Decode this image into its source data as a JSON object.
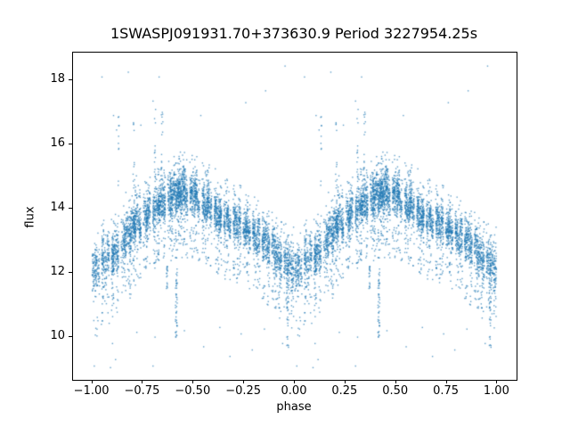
{
  "figure": {
    "background": "#ffffff",
    "text_color": "#000000",
    "spine_color": "#000000"
  },
  "chart_data": {
    "type": "scatter",
    "title": "1SWASPJ091931.70+373630.9 Period 3227954.25s",
    "xlabel": "phase",
    "ylabel": "flux",
    "xlim": [
      -1.095,
      1.095
    ],
    "ylim": [
      8.67,
      18.86
    ],
    "xticks": [
      -1.0,
      -0.75,
      -0.5,
      -0.25,
      0.0,
      0.25,
      0.5,
      0.75,
      1.0
    ],
    "xtick_labels": [
      "−1.00",
      "−0.75",
      "−0.50",
      "−0.25",
      "0.00",
      "0.25",
      "0.50",
      "0.75",
      "1.00"
    ],
    "yticks": [
      10,
      12,
      14,
      16,
      18
    ],
    "ytick_labels": [
      "10",
      "12",
      "14",
      "16",
      "18"
    ],
    "marker_color": "#1f77b4",
    "grid": false,
    "legend": null,
    "fold_note": "each point drawn at phase and phase-1 (two cycles, x from -1 to 1)",
    "mean_curve": {
      "phase": [
        0.0,
        0.04,
        0.08,
        0.12,
        0.16,
        0.2,
        0.25,
        0.3,
        0.35,
        0.4,
        0.46,
        0.52,
        0.58,
        0.64,
        0.7,
        0.76,
        0.82,
        0.86,
        0.9,
        0.95,
        1.0
      ],
      "flux": [
        12.15,
        12.25,
        12.4,
        12.7,
        13.05,
        13.4,
        13.7,
        13.95,
        14.2,
        14.4,
        14.55,
        14.3,
        14.0,
        13.75,
        13.55,
        13.35,
        13.1,
        12.9,
        12.65,
        12.3,
        12.15
      ]
    },
    "stripes": [
      [
        0.005,
        45,
        0.75,
        -0.1
      ],
      [
        0.018,
        70,
        0.8,
        0.05
      ],
      [
        0.03,
        35,
        0.7,
        -0.2
      ],
      [
        0.052,
        90,
        0.75,
        0.1
      ],
      [
        0.065,
        40,
        0.65,
        -0.05
      ],
      [
        0.078,
        60,
        0.8,
        0.15
      ],
      [
        0.1,
        110,
        0.7,
        -0.1
      ],
      [
        0.112,
        50,
        0.6,
        0.2
      ],
      [
        0.125,
        75,
        0.65,
        -0.15
      ],
      [
        0.148,
        40,
        0.7,
        0.05
      ],
      [
        0.16,
        85,
        0.6,
        -0.05
      ],
      [
        0.172,
        55,
        0.65,
        0.18
      ],
      [
        0.185,
        95,
        0.7,
        -0.12
      ],
      [
        0.198,
        65,
        0.6,
        0.08
      ],
      [
        0.21,
        120,
        0.65,
        -0.05
      ],
      [
        0.222,
        45,
        0.7,
        0.22
      ],
      [
        0.235,
        80,
        0.6,
        -0.18
      ],
      [
        0.258,
        55,
        0.65,
        0.1
      ],
      [
        0.27,
        100,
        0.6,
        -0.08
      ],
      [
        0.282,
        60,
        0.65,
        0.15
      ],
      [
        0.305,
        85,
        0.6,
        -0.15
      ],
      [
        0.318,
        50,
        0.65,
        0.05
      ],
      [
        0.33,
        110,
        0.6,
        -0.05
      ],
      [
        0.342,
        70,
        0.65,
        0.12
      ],
      [
        0.355,
        90,
        0.6,
        -0.1
      ],
      [
        0.378,
        55,
        0.65,
        0.08
      ],
      [
        0.39,
        120,
        0.7,
        -0.05
      ],
      [
        0.402,
        75,
        0.65,
        0.15
      ],
      [
        0.415,
        95,
        0.7,
        -0.1
      ],
      [
        0.428,
        130,
        0.65,
        0.05
      ],
      [
        0.44,
        85,
        0.7,
        -0.08
      ],
      [
        0.452,
        110,
        0.65,
        0.1
      ],
      [
        0.465,
        70,
        0.7,
        -0.15
      ],
      [
        0.488,
        95,
        0.65,
        0.05
      ],
      [
        0.5,
        60,
        0.7,
        -0.05
      ],
      [
        0.512,
        105,
        0.65,
        0.12
      ],
      [
        0.525,
        50,
        0.6,
        -0.18
      ],
      [
        0.548,
        85,
        0.65,
        0.08
      ],
      [
        0.56,
        65,
        0.6,
        -0.1
      ],
      [
        0.572,
        100,
        0.65,
        0.15
      ],
      [
        0.585,
        55,
        0.6,
        -0.05
      ],
      [
        0.608,
        90,
        0.65,
        0.1
      ],
      [
        0.62,
        70,
        0.6,
        -0.15
      ],
      [
        0.632,
        105,
        0.6,
        0.05
      ],
      [
        0.655,
        60,
        0.65,
        -0.08
      ],
      [
        0.668,
        85,
        0.6,
        0.12
      ],
      [
        0.68,
        45,
        0.65,
        -0.2
      ],
      [
        0.702,
        95,
        0.6,
        0.08
      ],
      [
        0.715,
        65,
        0.6,
        -0.1
      ],
      [
        0.728,
        80,
        0.65,
        0.15
      ],
      [
        0.75,
        55,
        0.6,
        -0.05
      ],
      [
        0.762,
        100,
        0.6,
        0.1
      ],
      [
        0.775,
        70,
        0.65,
        -0.12
      ],
      [
        0.798,
        85,
        0.6,
        0.05
      ],
      [
        0.81,
        50,
        0.6,
        -0.15
      ],
      [
        0.822,
        75,
        0.65,
        0.1
      ],
      [
        0.845,
        90,
        0.6,
        -0.08
      ],
      [
        0.858,
        60,
        0.6,
        0.12
      ],
      [
        0.87,
        80,
        0.65,
        -0.05
      ],
      [
        0.892,
        65,
        0.6,
        0.1
      ],
      [
        0.905,
        85,
        0.65,
        -0.12
      ],
      [
        0.918,
        55,
        0.6,
        0.05
      ],
      [
        0.93,
        75,
        0.65,
        -0.08
      ],
      [
        0.952,
        60,
        0.6,
        0.1
      ],
      [
        0.965,
        80,
        0.65,
        -0.05
      ],
      [
        0.978,
        45,
        0.6,
        0.08
      ],
      [
        0.99,
        65,
        0.7,
        -0.1
      ]
    ],
    "tall_streaks": [
      [
        0.13,
        10,
        14.5,
        16.9
      ],
      [
        0.205,
        12,
        14.6,
        16.8
      ],
      [
        0.31,
        15,
        14.8,
        17.35
      ],
      [
        0.345,
        14,
        14.7,
        17.2
      ]
    ],
    "deep_dips": [
      [
        0.415,
        45,
        9.95,
        12.15
      ],
      [
        0.37,
        18,
        11.5,
        12.2
      ],
      [
        0.965,
        25,
        9.65,
        11.6
      ]
    ],
    "outliers_high": [
      [
        0.048,
        18.1
      ],
      [
        0.178,
        18.25
      ],
      [
        0.33,
        18.1
      ],
      [
        0.952,
        18.44
      ],
      [
        0.856,
        17.67
      ],
      [
        0.758,
        17.3
      ],
      [
        0.536,
        16.9
      ],
      [
        0.105,
        16.9
      ],
      [
        0.3,
        17.35
      ],
      [
        0.24,
        16.6
      ],
      [
        0.12,
        16.45
      ]
    ],
    "outliers_low": [
      [
        0.01,
        9.1
      ],
      [
        0.09,
        9.05
      ],
      [
        0.1,
        9.8
      ],
      [
        0.115,
        9.3
      ],
      [
        0.3,
        9.1
      ],
      [
        0.55,
        9.7
      ],
      [
        0.68,
        9.4
      ],
      [
        0.79,
        9.6
      ],
      [
        0.94,
        9.8
      ],
      [
        0.455,
        10.2
      ],
      [
        0.31,
        10.0
      ],
      [
        0.22,
        10.15
      ],
      [
        0.63,
        10.3
      ],
      [
        0.85,
        10.25
      ],
      [
        0.045,
        10.4
      ],
      [
        0.735,
        10.1
      ]
    ]
  }
}
